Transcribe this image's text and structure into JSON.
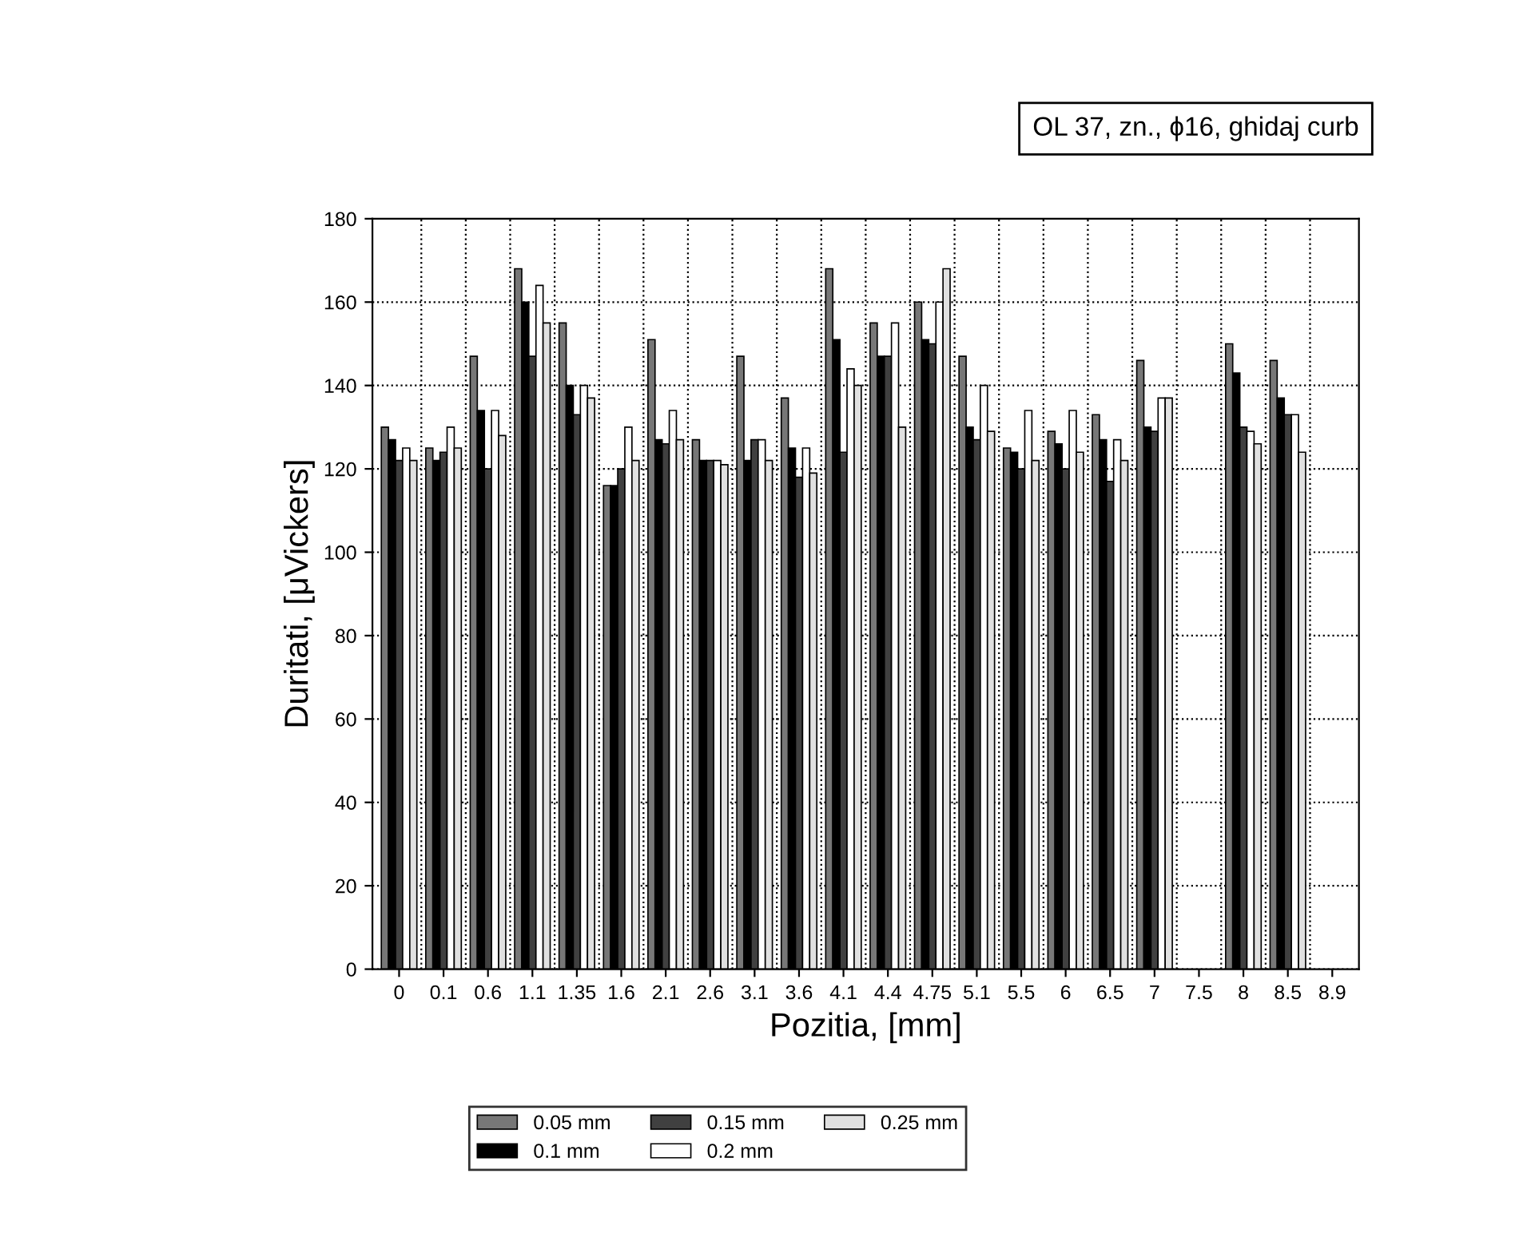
{
  "chart_data": {
    "type": "bar",
    "title": "OL 37, zn., ϕ16, ghidaj curb",
    "xlabel": "Pozitia, [mm]",
    "ylabel": "Duritati, [μVickers]",
    "categories": [
      "0",
      "0.1",
      "0.6",
      "1.1",
      "1.35",
      "1.6",
      "2.1",
      "2.6",
      "3.1",
      "3.6",
      "4.1",
      "4.4",
      "4.75",
      "5.1",
      "5.5",
      "6",
      "6.5",
      "7",
      "7.5",
      "8",
      "8.5",
      "8.9"
    ],
    "series": [
      {
        "name": "0.05 mm",
        "color": "#777777",
        "values": [
          130,
          125,
          147,
          168,
          155,
          116,
          151,
          127,
          147,
          137,
          168,
          155,
          160,
          147,
          125,
          129,
          133,
          146,
          null,
          150,
          146,
          null
        ]
      },
      {
        "name": "0.1 mm",
        "color": "#000000",
        "values": [
          127,
          122,
          134,
          160,
          140,
          116,
          127,
          122,
          122,
          125,
          151,
          147,
          151,
          130,
          124,
          126,
          127,
          130,
          null,
          143,
          137,
          null
        ]
      },
      {
        "name": "0.15 mm",
        "color": "#404040",
        "values": [
          122,
          124,
          120,
          147,
          133,
          120,
          126,
          122,
          127,
          118,
          124,
          147,
          150,
          127,
          120,
          120,
          117,
          129,
          null,
          130,
          133,
          null
        ]
      },
      {
        "name": "0.2 mm",
        "color": "#ffffff",
        "values": [
          125,
          130,
          134,
          164,
          140,
          130,
          134,
          122,
          127,
          125,
          144,
          155,
          160,
          140,
          134,
          134,
          127,
          137,
          null,
          129,
          133,
          null
        ]
      },
      {
        "name": "0.25 mm",
        "color": "#e0e0e0",
        "values": [
          122,
          125,
          128,
          155,
          137,
          122,
          127,
          121,
          122,
          119,
          140,
          130,
          168,
          129,
          122,
          124,
          122,
          137,
          null,
          126,
          124,
          null
        ]
      }
    ],
    "ylim": [
      0,
      180
    ],
    "yticks": [
      0,
      20,
      40,
      60,
      80,
      100,
      120,
      140,
      160,
      180
    ],
    "grid": true,
    "legend": "bottom"
  }
}
